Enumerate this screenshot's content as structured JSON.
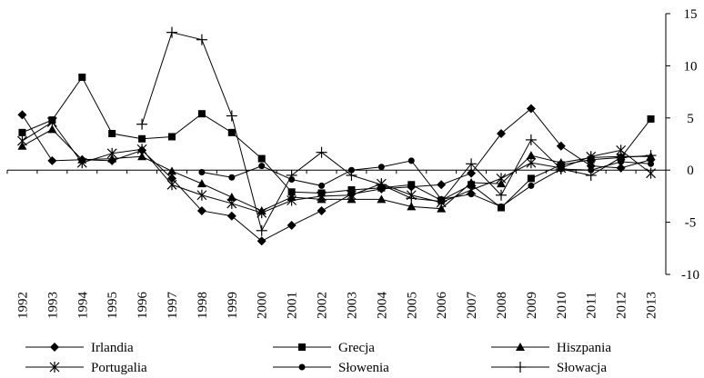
{
  "chart_data": {
    "type": "line",
    "title": "",
    "xlabel": "",
    "ylabel": "",
    "x": [
      "1992",
      "1993",
      "1994",
      "1995",
      "1996",
      "1997",
      "1998",
      "1999",
      "2000",
      "2001",
      "2002",
      "2003",
      "2004",
      "2005",
      "2006",
      "2007",
      "2008",
      "2009",
      "2010",
      "2011",
      "2012",
      "2013"
    ],
    "ylim": [
      -10,
      15
    ],
    "yticks": [
      -10,
      -5,
      0,
      5,
      10,
      15
    ],
    "y_axis_position": "right",
    "grid": false,
    "legend_position": "bottom",
    "series": [
      {
        "name": "Irlandia",
        "marker": "diamond",
        "values": [
          5.3,
          0.9,
          1.0,
          0.9,
          1.9,
          -0.8,
          -3.9,
          -4.4,
          -6.8,
          -5.3,
          -3.9,
          -2.3,
          -1.8,
          -1.6,
          -1.4,
          -0.3,
          3.5,
          5.9,
          2.3,
          0.4,
          0.2,
          1.0
        ]
      },
      {
        "name": "Grecja",
        "marker": "square",
        "values": [
          3.6,
          4.8,
          8.9,
          3.5,
          3.0,
          3.2,
          5.4,
          3.6,
          1.1,
          -2.1,
          -2.2,
          -1.9,
          -1.7,
          -1.4,
          -2.9,
          -1.4,
          -3.6,
          -0.8,
          0.5,
          1.0,
          1.2,
          4.9
        ]
      },
      {
        "name": "Hiszpania",
        "marker": "triangle",
        "values": [
          2.3,
          3.9,
          1.0,
          1.1,
          1.3,
          -0.1,
          -1.3,
          -2.6,
          -3.9,
          -2.6,
          -2.8,
          -2.8,
          -2.8,
          -3.5,
          -3.7,
          -1.2,
          -1.3,
          1.4,
          0.7,
          1.2,
          1.3,
          1.3
        ]
      },
      {
        "name": "Portugalia",
        "marker": "asterisk",
        "values": [
          2.8,
          4.6,
          0.7,
          1.6,
          2.0,
          -1.4,
          -2.4,
          -3.2,
          -4.1,
          -2.9,
          -2.5,
          -2.4,
          -1.3,
          -2.4,
          -3.1,
          -1.9,
          -0.8,
          0.7,
          0.2,
          1.3,
          1.9,
          -0.3
        ]
      },
      {
        "name": "Słowenia",
        "marker": "circle",
        "values": [
          null,
          null,
          null,
          null,
          null,
          null,
          -0.2,
          -0.7,
          0.4,
          -0.9,
          -1.5,
          0.0,
          0.3,
          0.9,
          -2.8,
          -2.3,
          -3.5,
          -1.5,
          0.1,
          0.0,
          0.8,
          0.6
        ]
      },
      {
        "name": "Słowacja",
        "marker": "plus",
        "values": [
          null,
          null,
          null,
          null,
          4.4,
          13.2,
          12.5,
          5.2,
          -5.8,
          -0.5,
          1.7,
          -0.5,
          -1.4,
          -2.7,
          -3.0,
          0.6,
          -2.4,
          2.9,
          0.1,
          -0.5,
          1.2,
          1.4
        ]
      }
    ]
  }
}
